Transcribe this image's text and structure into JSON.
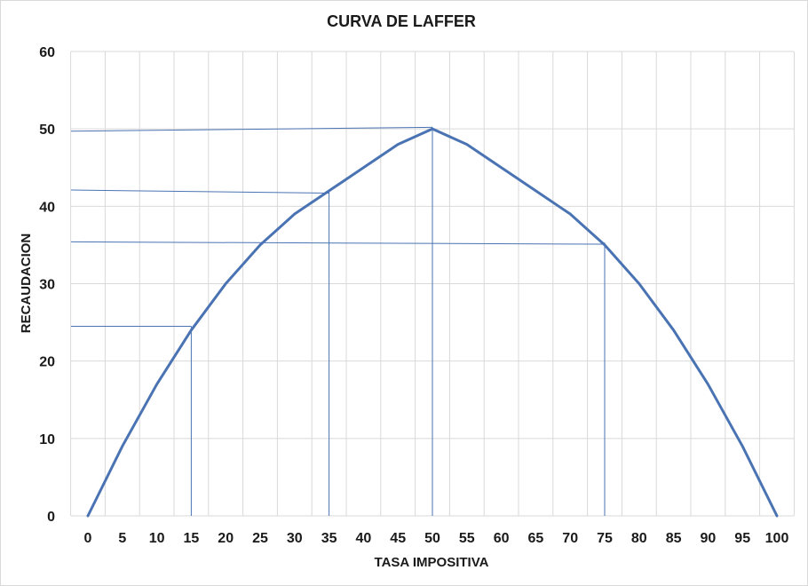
{
  "chart_data": {
    "type": "line",
    "title": "CURVA DE LAFFER",
    "xlabel": "TASA IMPOSITIVA",
    "ylabel": "RECAUDACION",
    "x": [
      0,
      5,
      10,
      15,
      20,
      25,
      30,
      35,
      40,
      45,
      50,
      55,
      60,
      65,
      70,
      75,
      80,
      85,
      90,
      95,
      100
    ],
    "x_tick_labels": [
      "0",
      "5",
      "10",
      "15",
      "20",
      "25",
      "30",
      "35",
      "40",
      "45",
      "50",
      "55",
      "60",
      "65",
      "70",
      "75",
      "80",
      "85",
      "90",
      "95",
      "100"
    ],
    "series": [
      {
        "values": [
          0,
          9,
          17,
          24,
          30,
          35,
          39,
          42,
          45,
          48,
          50,
          48,
          45,
          42,
          39,
          35,
          30,
          24,
          17,
          9,
          0
        ],
        "color": "#4a73b3"
      }
    ],
    "ylim": [
      0,
      60
    ],
    "y_ticks": [
      0,
      10,
      20,
      30,
      40,
      50,
      60
    ],
    "y_tick_labels": [
      "0",
      "10",
      "20",
      "30",
      "40",
      "50",
      "60"
    ],
    "grid": true,
    "gridline_color": "#d9d9d9",
    "reference_lines": {
      "color": "#4a73b3",
      "vertical": [
        {
          "x": 15,
          "y_from": 0,
          "y_to": 24.5
        },
        {
          "x": 35,
          "y_from": 0,
          "y_to": 42
        },
        {
          "x": 50,
          "y_from": 0,
          "y_to": 50.2
        },
        {
          "x": 75,
          "y_from": 0,
          "y_to": 35.3
        }
      ],
      "horizontal": [
        {
          "y_start": 24.5,
          "y_end": 24.5,
          "x_to": 15
        },
        {
          "y_start": 42.1,
          "y_end": 41.7,
          "x_to": 35
        },
        {
          "y_start": 49.7,
          "y_end": 50.2,
          "x_to": 50
        },
        {
          "y_start": 35.4,
          "y_end": 35.1,
          "x_to": 75
        }
      ]
    }
  }
}
